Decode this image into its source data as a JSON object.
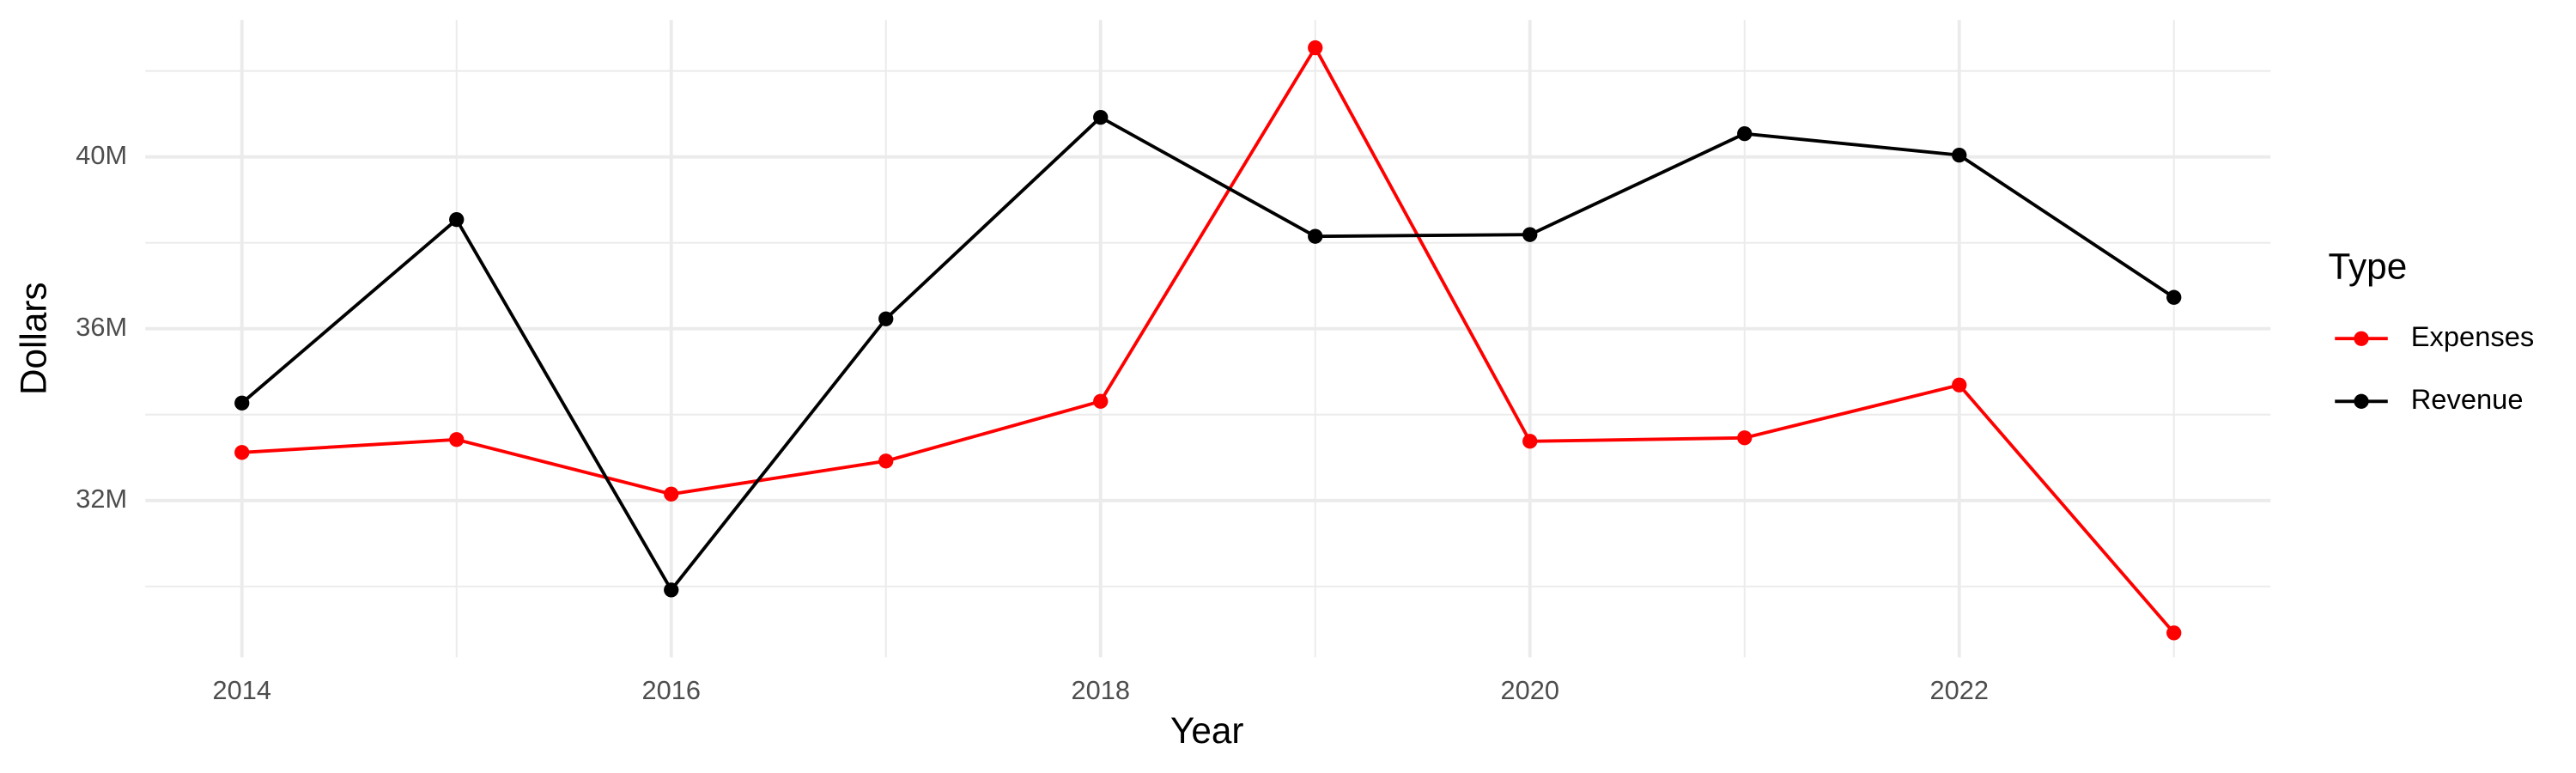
{
  "chart_data": {
    "type": "line",
    "x_label": "Year",
    "y_label": "Dollars",
    "x": [
      2014,
      2015,
      2016,
      2017,
      2018,
      2019,
      2020,
      2021,
      2022,
      2023
    ],
    "series": [
      {
        "name": "Expenses",
        "color": "#ff0000",
        "values": [
          33120000,
          33420000,
          32150000,
          32920000,
          34310000,
          42540000,
          33380000,
          33460000,
          34690000,
          28920000
        ]
      },
      {
        "name": "Revenue",
        "color": "#000000",
        "values": [
          34270000,
          38540000,
          29920000,
          36230000,
          40920000,
          38150000,
          38190000,
          40540000,
          40040000,
          36730000
        ]
      }
    ],
    "xlim": [
      2013.55,
      2023.45
    ],
    "xticks": [
      2014,
      2016,
      2018,
      2020,
      2022
    ],
    "ylim": [
      28350000,
      43190000
    ],
    "yticks": [
      {
        "value": 32000000,
        "label": "32M"
      },
      {
        "value": 36000000,
        "label": "36M"
      },
      {
        "value": 40000000,
        "label": "40M"
      }
    ],
    "grid": true,
    "legend_title": "Type",
    "legend_position": "right"
  }
}
